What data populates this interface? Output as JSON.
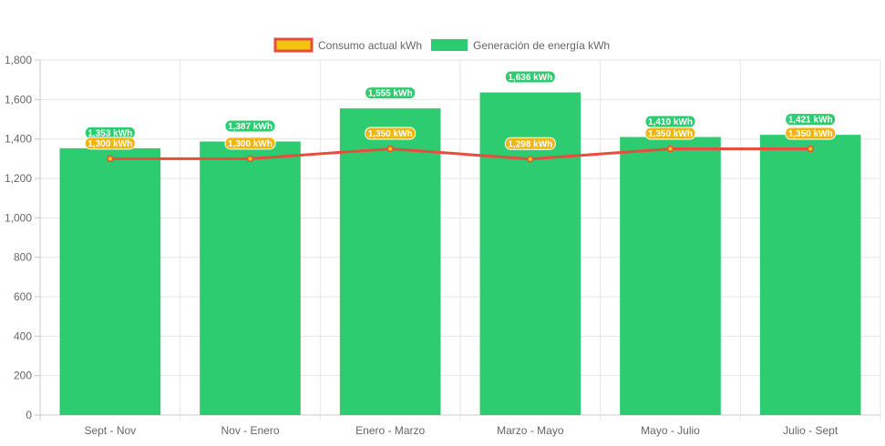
{
  "chart_data": {
    "type": "bar",
    "categories": [
      "Sept - Nov",
      "Nov - Enero",
      "Enero - Marzo",
      "Marzo - Mayo",
      "Mayo - Julio",
      "Julio - Sept"
    ],
    "series": [
      {
        "name": "Consumo actual kWh",
        "type": "line",
        "values": [
          1300,
          1300,
          1350,
          1298,
          1350,
          1350
        ],
        "labels": [
          "1,300 kWh",
          "1,300 kWh",
          "1,350 kWh",
          "1,298 kWh",
          "1,350 kWh",
          "1,350 kWh"
        ],
        "line_color": "#e74c3c",
        "fill_color": "#f1c40f",
        "label_bg": "#f1b50f"
      },
      {
        "name": "Generación de energía kWh",
        "type": "bar",
        "values": [
          1353,
          1387,
          1555,
          1636,
          1410,
          1421
        ],
        "labels": [
          "1,353 kWh",
          "1,387 kWh",
          "1,555 kWh",
          "1,636 kWh",
          "1,410 kWh",
          "1,421 kWh"
        ],
        "color": "#2ecc71"
      }
    ],
    "yticks": [
      "0",
      "200",
      "400",
      "600",
      "800",
      "1,000",
      "1,200",
      "1,400",
      "1,600",
      "1,800"
    ],
    "ylim": [
      0,
      1800
    ],
    "grid": true,
    "legend_position": "top"
  }
}
